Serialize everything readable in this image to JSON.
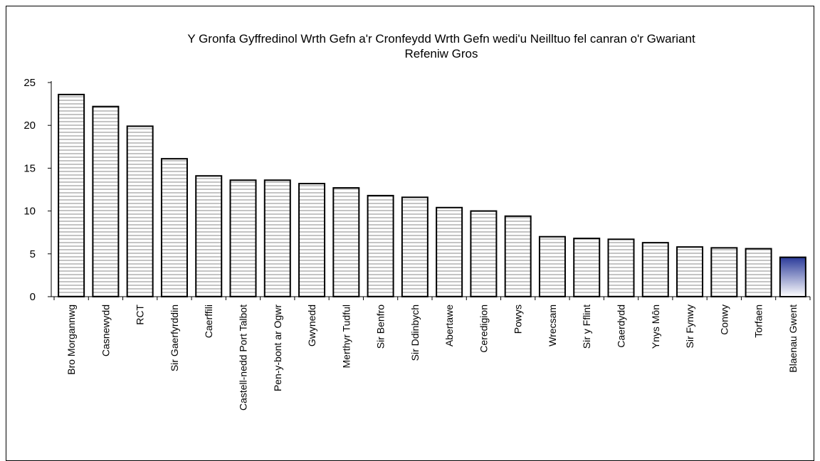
{
  "chart_data": {
    "type": "bar",
    "title_lines": [
      "Y Gronfa Gyffredinol Wrth Gefn a'r Cronfeydd Wrth Gefn wedi'u Neilltuo fel canran o'r Gwariant",
      "Refeniw Gros"
    ],
    "xlabel": "",
    "ylabel": "",
    "ylim": [
      0,
      25
    ],
    "yticks": [
      0,
      5,
      10,
      15,
      20,
      25
    ],
    "grid": false,
    "legend": "none",
    "categories": [
      "Bro Morgannwg",
      "Casnewydd",
      "RCT",
      "Sir Gaerfyrddin",
      "Caerffili",
      "Castell-nedd Port Talbot",
      "Pen-y-bont ar Ogwr",
      "Gwynedd",
      "Merthyr Tudful",
      "Sir Benfro",
      "Sir Ddinbych",
      "Abertawe",
      "Ceredigion",
      "Powys",
      "Wrecsam",
      "Sir y Fflint",
      "Caerdydd",
      "Ynys Môn",
      "Sir Fynwy",
      "Conwy",
      "Torfaen",
      "Blaenau Gwent"
    ],
    "values": [
      23.6,
      22.2,
      19.9,
      16.1,
      14.1,
      13.6,
      13.6,
      13.2,
      12.7,
      11.8,
      11.6,
      10.4,
      10.0,
      9.4,
      7.0,
      6.8,
      6.7,
      6.3,
      5.8,
      5.7,
      5.6,
      4.6
    ],
    "highlight_category": "Blaenau Gwent",
    "colors": {
      "bar_fill": "#ffffff",
      "bar_stripe": "#c4c4c4",
      "bar_border": "#000000",
      "highlight_top": "#2b3b9a",
      "highlight_bottom": "#ffffff"
    }
  }
}
